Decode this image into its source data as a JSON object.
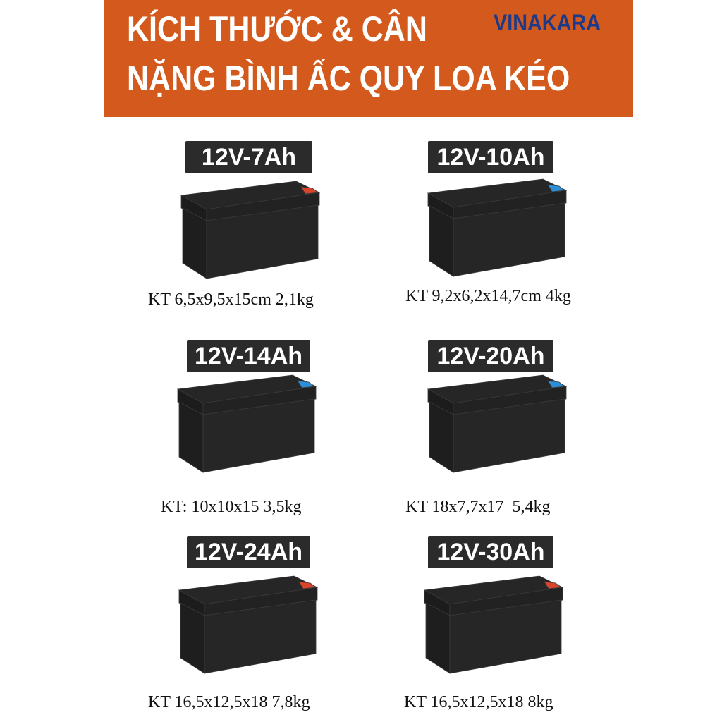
{
  "header": {
    "title_line1": "KÍCH THƯỚC & CÂN",
    "title_line2": "NẶNG BÌNH ẤC QUY LOA KÉO",
    "brand": "VINAKARA",
    "background_color": "#d35a1c",
    "brand_color": "#1d3a8a"
  },
  "products": [
    {
      "label": "12V-7Ah",
      "caption": "KT 6,5x9,5x15cm 2,1kg",
      "terminal_color": "#d9452b"
    },
    {
      "label": "12V-10Ah",
      "caption": "KT 9,2x6,2x14,7cm 4kg",
      "terminal_color": "#2a8fd6"
    },
    {
      "label": "12V-14Ah",
      "caption": "KT: 10x10x15 3,5kg",
      "terminal_color": "#2a8fd6"
    },
    {
      "label": "12V-20Ah",
      "caption": "KT 18x7,7x17  5,4kg",
      "terminal_color": "#2a8fd6"
    },
    {
      "label": "12V-24Ah",
      "caption": "KT 16,5x12,5x18 7,8kg",
      "terminal_color": "#d9452b"
    },
    {
      "label": "12V-30Ah",
      "caption": "KT 16,5x12,5x18 8kg",
      "terminal_color": "#d9452b"
    }
  ]
}
